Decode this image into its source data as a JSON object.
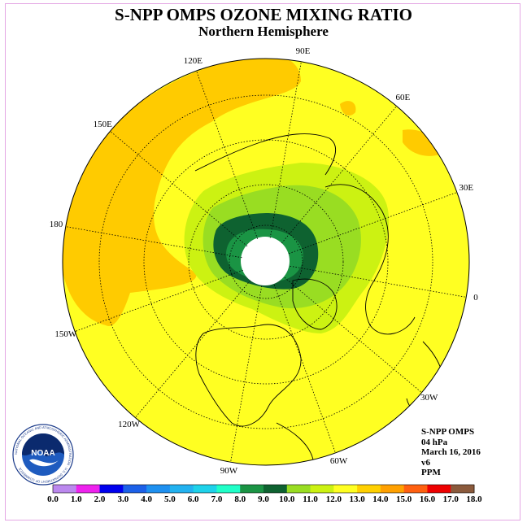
{
  "header": {
    "title": "S-NPP OMPS OZONE MIXING RATIO",
    "subtitle": "Northern Hemisphere"
  },
  "longitudes": [
    {
      "label": "90E",
      "deg": 90
    },
    {
      "label": "60E",
      "deg": 60
    },
    {
      "label": "30E",
      "deg": 30
    },
    {
      "label": "0",
      "deg": 0
    },
    {
      "label": "30W",
      "deg": -30
    },
    {
      "label": "60W",
      "deg": -60
    },
    {
      "label": "90W",
      "deg": -90
    },
    {
      "label": "120W",
      "deg": -120
    },
    {
      "label": "150W",
      "deg": -150
    },
    {
      "label": "180",
      "deg": 180
    },
    {
      "label": "150E",
      "deg": 150
    },
    {
      "label": "120E",
      "deg": 120
    }
  ],
  "info": {
    "instrument": "S-NPP OMPS",
    "level": "04 hPa",
    "date": "March 16, 2016",
    "version": "v6",
    "units": "PPM"
  },
  "logo": {
    "name": "noaa-logo",
    "text": "NOAA",
    "ring_text": "NATIONAL OCEANIC AND ATMOSPHERIC ADMINISTRATION · U.S. DEPARTMENT OF COMMERCE"
  },
  "colorbar": {
    "ticks": [
      "0.0",
      "1.0",
      "2.0",
      "3.0",
      "4.0",
      "5.0",
      "6.0",
      "7.0",
      "8.0",
      "9.0",
      "10.0",
      "11.0",
      "12.0",
      "13.0",
      "14.0",
      "15.0",
      "16.0",
      "17.0",
      "18.0"
    ],
    "colors": [
      "#bb88ee",
      "#dcb8f0",
      "#ee22ee",
      "#0000ee",
      "#1c60e8",
      "#1e90f0",
      "#22b2f0",
      "#1ed2ea",
      "#20ffc8",
      "#1a9444",
      "#0e6230",
      "#99dd22",
      "#ccf212",
      "#ffff22",
      "#ffd000",
      "#ffa000",
      "#ff6010",
      "#ee0000",
      "#8b5a3c"
    ]
  }
}
